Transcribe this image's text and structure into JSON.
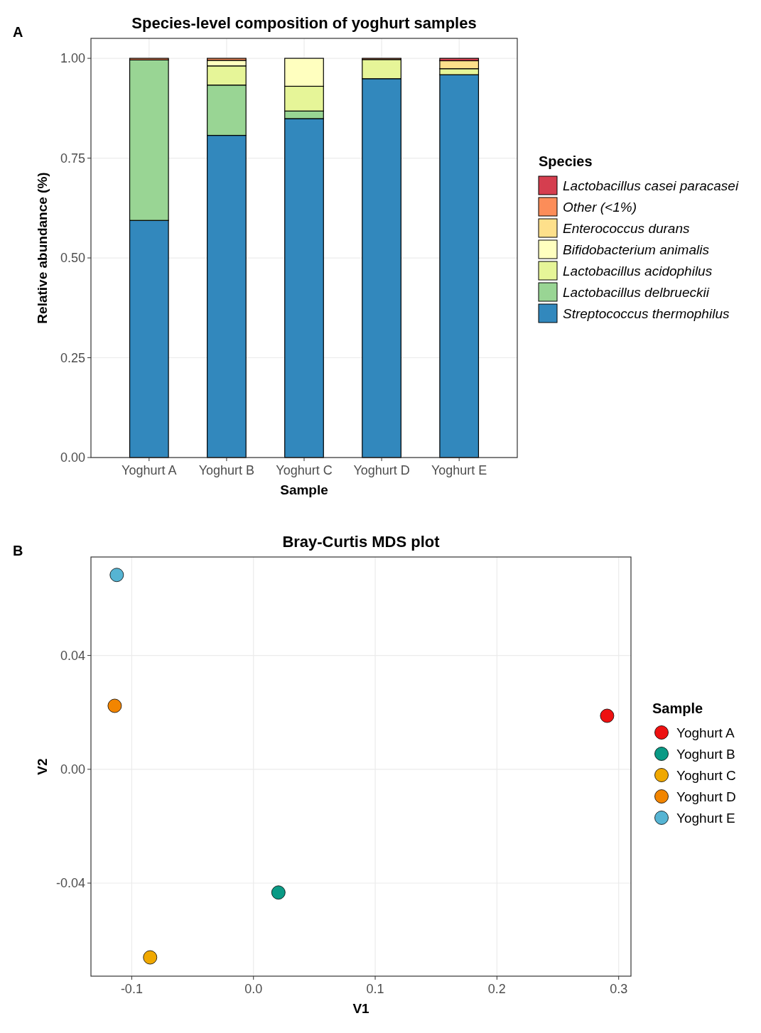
{
  "chart_data": [
    {
      "type": "bar",
      "title": "Species-level composition of yoghurt samples",
      "xlabel": "Sample",
      "ylabel": "Relative abundance (%)",
      "annotations": [
        "A"
      ],
      "categories": [
        "Yoghurt A",
        "Yoghurt B",
        "Yoghurt C",
        "Yoghurt D",
        "Yoghurt E"
      ],
      "stacked": true,
      "series": [
        {
          "name": "Streptococcus thermophilus",
          "color": "#3288bd",
          "values": [
            0.594,
            0.807,
            0.849,
            0.949,
            0.959
          ]
        },
        {
          "name": "Lactobacillus delbrueckii",
          "color": "#99d594",
          "values": [
            0.402,
            0.126,
            0.019,
            0,
            0
          ]
        },
        {
          "name": "Lactobacillus acidophilus",
          "color": "#e6f598",
          "values": [
            0,
            0.048,
            0.062,
            0.048,
            0.015
          ]
        },
        {
          "name": "Bifidobacterium animalis",
          "color": "#ffffbf",
          "values": [
            0,
            0.014,
            0.07,
            0,
            0
          ]
        },
        {
          "name": "Enterococcus durans",
          "color": "#fee08b",
          "values": [
            0,
            0,
            0,
            0,
            0.02
          ]
        },
        {
          "name": "Other (<1%)",
          "color": "#fc8d59",
          "values": [
            0.004,
            0.005,
            0,
            0.003,
            null
          ]
        },
        {
          "name": "Lactobacillus casei paracasei",
          "color": "#d53e4f",
          "values": [
            0,
            0,
            0,
            0,
            0.006
          ]
        }
      ],
      "ylim": [
        0,
        1.05
      ],
      "yticks": [
        {
          "value": 0,
          "label": "0.00"
        },
        0.25,
        {
          "value": 0.5,
          "label": "0.50"
        },
        0.75,
        {
          "value": 1,
          "label": "1.00"
        }
      ],
      "grid": true,
      "legend": "right",
      "legend_title": "Species"
    },
    {
      "type": "scatter",
      "title": "Bray-Curtis MDS plot",
      "xlabel": "V1",
      "ylabel": "V2",
      "annotations": [
        "B"
      ],
      "series": [
        {
          "name": "Yoghurt A",
          "color": "#ee1111",
          "x": [
            0.2905
          ],
          "values": [
            0.0188
          ]
        },
        {
          "name": "Yoghurt B",
          "color": "#0a9a85",
          "x": [
            0.0205
          ],
          "values": [
            -0.0433
          ]
        },
        {
          "name": "Yoghurt C",
          "color": "#f0a800",
          "x": [
            -0.0849
          ],
          "values": [
            -0.0661
          ]
        },
        {
          "name": "Yoghurt D",
          "color": "#f28500",
          "x": [
            -0.114
          ],
          "values": [
            0.0223
          ]
        },
        {
          "name": "Yoghurt E",
          "color": "#56b4d3",
          "x": [
            -0.1123
          ],
          "values": [
            0.0683
          ]
        }
      ],
      "xlim": [
        -0.1335,
        0.3101
      ],
      "xticks": [
        -0.1,
        {
          "value": 0,
          "label": "0.0"
        },
        0.1,
        0.2,
        0.3
      ],
      "ylim": [
        -0.0727,
        0.0746
      ],
      "yticks": [
        -0.04,
        {
          "value": 0,
          "label": "0.00"
        },
        0.04
      ],
      "grid": true,
      "legend": "right",
      "legend_title": "Sample",
      "marker": "circle"
    }
  ]
}
